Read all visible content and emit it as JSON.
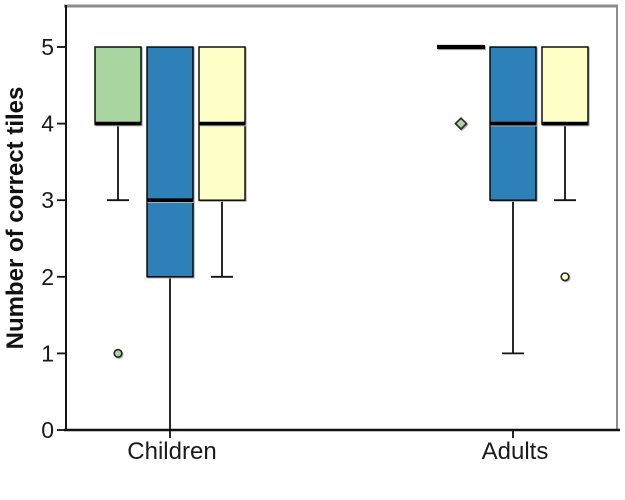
{
  "chart_data": {
    "type": "boxplot",
    "title": "",
    "ylabel": "Number of correct tiles",
    "xlabel": "",
    "ylim": [
      0,
      5.55
    ],
    "yticks": [
      0,
      1,
      2,
      3,
      4,
      5
    ],
    "categories": [
      "Children",
      "Adults"
    ],
    "legend": "none",
    "grid": false,
    "colors": {
      "frame_gray": "#8c8c8c",
      "axis_black": "#111111",
      "median_black": "#000000",
      "marker_border": "#262626"
    },
    "series": [
      {
        "name": "green",
        "color": "#a8d5a0",
        "boxes": [
          {
            "category": "Children",
            "q1": 4,
            "median": 4,
            "q3": 5,
            "whisker_low": 3,
            "whisker_high": 5,
            "outliers": [
              {
                "value": 1,
                "shape": "circle"
              }
            ]
          },
          {
            "category": "Adults",
            "q1": 5,
            "median": 5,
            "q3": 5,
            "whisker_low": 5,
            "whisker_high": 5,
            "outliers": [
              {
                "value": 4,
                "shape": "diamond"
              }
            ]
          }
        ]
      },
      {
        "name": "blue",
        "color": "#2d80b8",
        "boxes": [
          {
            "category": "Children",
            "q1": 2,
            "median": 3,
            "q3": 5,
            "whisker_low": 0,
            "whisker_high": 5,
            "outliers": []
          },
          {
            "category": "Adults",
            "q1": 3,
            "median": 4,
            "q3": 5,
            "whisker_low": 1,
            "whisker_high": 5,
            "outliers": []
          }
        ]
      },
      {
        "name": "yellow",
        "color": "#feffc7",
        "boxes": [
          {
            "category": "Children",
            "q1": 3,
            "median": 4,
            "q3": 5,
            "whisker_low": 2,
            "whisker_high": 5,
            "outliers": []
          },
          {
            "category": "Adults",
            "q1": 4,
            "median": 4,
            "q3": 5,
            "whisker_low": 3,
            "whisker_high": 5,
            "outliers": [
              {
                "value": 2,
                "shape": "circle"
              }
            ]
          }
        ]
      }
    ]
  }
}
